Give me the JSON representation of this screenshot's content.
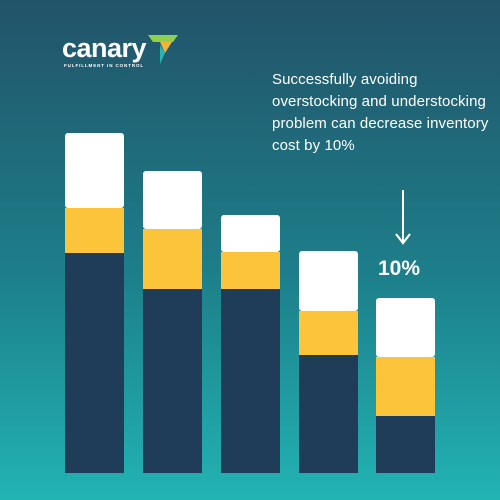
{
  "brand": {
    "name": "canary",
    "tagline": "FULFILLMENT IN CONTROL",
    "mark_icon": "canary-7-logo-icon",
    "mark_colors": [
      "#8fd14f",
      "#f5b335",
      "#2bb3b1"
    ]
  },
  "caption": "Successfully avoiding overstocking and understocking  problem can decrease inventory cost by 10%",
  "arrow_icon": "down-arrow-icon",
  "colors": {
    "segment_bottom": "#1f3d58",
    "segment_middle": "#fcc43b",
    "segment_top": "#ffffff"
  },
  "chart_data": {
    "type": "bar",
    "stacked": true,
    "categories": [
      "",
      "",
      "",
      "",
      ""
    ],
    "series": [
      {
        "values": [
          220,
          184,
          184,
          118,
          57
        ]
      },
      {
        "values": [
          45,
          60,
          37,
          44,
          59
        ]
      },
      {
        "values": [
          75,
          58,
          37,
          60,
          59
        ]
      }
    ],
    "annotations": [
      {
        "category_index": 4,
        "text": "10%"
      }
    ],
    "ylim": [
      0,
      340
    ],
    "grid": false,
    "legend": "none"
  }
}
